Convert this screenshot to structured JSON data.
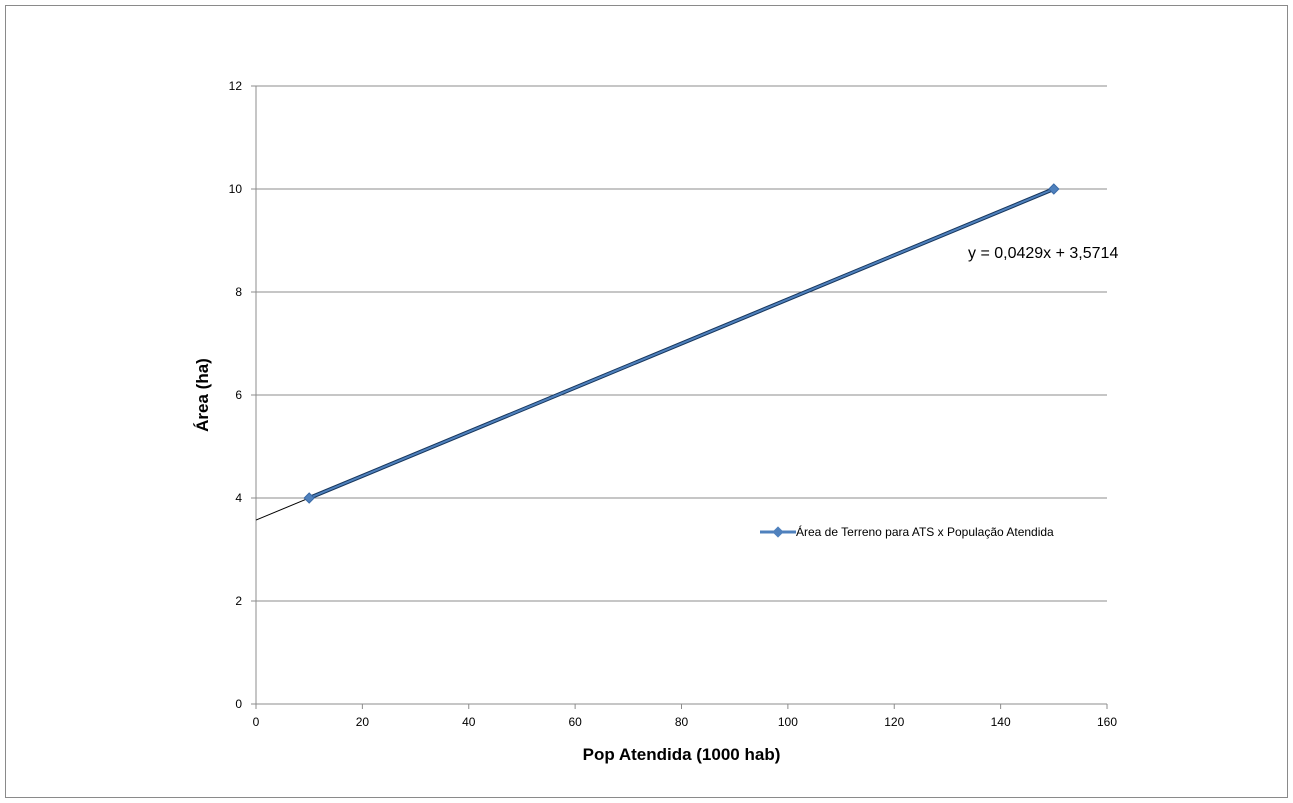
{
  "chart_data": {
    "type": "scatter",
    "title": "",
    "xlabel": "Pop Atendida (1000 hab)",
    "ylabel": "Área (ha)",
    "xlim": [
      0,
      160
    ],
    "ylim": [
      0,
      12
    ],
    "xticks": [
      0,
      20,
      40,
      60,
      80,
      100,
      120,
      140,
      160
    ],
    "yticks": [
      0,
      2,
      4,
      6,
      8,
      10,
      12
    ],
    "grid": "horizontal",
    "legend_position": "right",
    "series": [
      {
        "name": "Área de Terreno para ATS x População Atendida",
        "x": [
          10,
          150
        ],
        "y": [
          4,
          10
        ],
        "color": "#4f81bd",
        "marker": "diamond"
      }
    ],
    "trendline": {
      "type": "linear",
      "slope": 0.0429,
      "intercept": 3.5714,
      "equation": "y = 0,0429x + 3,5714",
      "x_range": [
        0,
        150
      ]
    }
  }
}
